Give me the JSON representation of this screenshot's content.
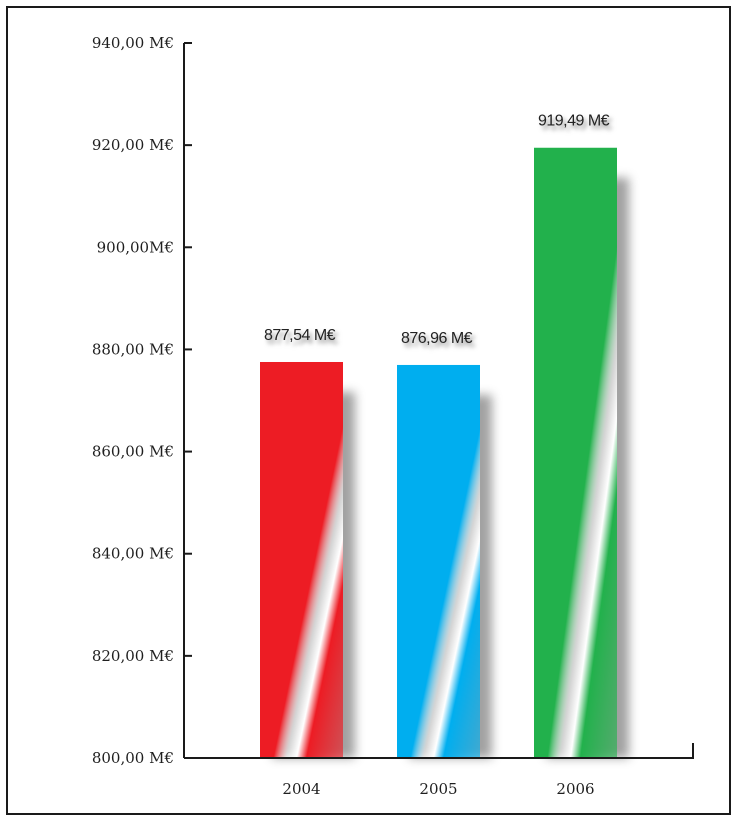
{
  "chart_data": {
    "type": "bar",
    "title": "",
    "xlabel": "",
    "ylabel": "",
    "categories": [
      "2004",
      "2005",
      "2006"
    ],
    "values": [
      877.54,
      876.96,
      919.49
    ],
    "value_labels": [
      "877,54 M€",
      "876,96 M€",
      "919,49 M€"
    ],
    "ylim": [
      800,
      940
    ],
    "yticks": [
      800,
      820,
      840,
      860,
      880,
      900,
      920,
      940
    ],
    "ytick_labels": [
      "800,00 M€",
      "820,00 M€",
      "840,00 M€",
      "860,00 M€",
      "880,00 M€",
      "900,00M€",
      "920,00 M€",
      "940,00 M€"
    ],
    "grid": false,
    "colors": [
      "#ed1c24",
      "#00aeef",
      "#22b14c"
    ]
  }
}
